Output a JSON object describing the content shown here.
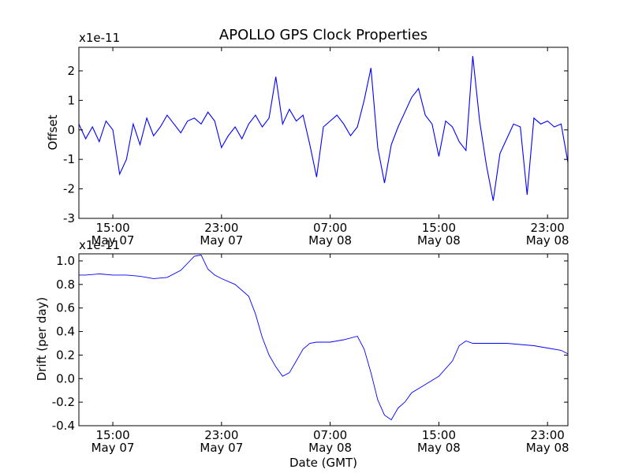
{
  "chart_data": [
    {
      "type": "line",
      "title": "APOLLO GPS Clock Properties",
      "xlabel": "",
      "ylabel": "Offset",
      "scale_label": "x1e-11",
      "ylim": [
        -3,
        2.8
      ],
      "yticks": [
        -3,
        -2,
        -1,
        0,
        1,
        2
      ],
      "ytick_labels": [
        "-3",
        "-2",
        "-1",
        "0",
        "1",
        "2"
      ],
      "xlim_hours": [
        12.5,
        48.5
      ],
      "xtick_hours": [
        15,
        23,
        31,
        39,
        47
      ],
      "xticks": [
        {
          "time": "15:00",
          "date": "May 07"
        },
        {
          "time": "23:00",
          "date": "May 07"
        },
        {
          "time": "07:00",
          "date": "May 08"
        },
        {
          "time": "15:00",
          "date": "May 08"
        },
        {
          "time": "23:00",
          "date": "May 08"
        }
      ],
      "series": [
        {
          "color": "#0000ff",
          "x_hours": [
            12.5,
            13.0,
            13.5,
            14.0,
            14.5,
            15.0,
            15.5,
            16.0,
            16.5,
            17.0,
            17.5,
            18.0,
            18.5,
            19.0,
            19.5,
            20.0,
            20.5,
            21.0,
            21.5,
            22.0,
            22.5,
            23.0,
            23.5,
            24.0,
            24.5,
            25.0,
            25.5,
            26.0,
            26.5,
            27.0,
            27.5,
            28.0,
            28.5,
            29.0,
            29.5,
            30.0,
            30.5,
            31.0,
            31.5,
            32.0,
            32.5,
            33.0,
            33.5,
            34.0,
            34.5,
            35.0,
            35.5,
            36.0,
            36.5,
            37.0,
            37.5,
            38.0,
            38.5,
            39.0,
            39.5,
            40.0,
            40.5,
            41.0,
            41.5,
            42.0,
            42.5,
            43.0,
            43.5,
            44.0,
            44.5,
            45.0,
            45.5,
            46.0,
            46.5,
            47.0,
            47.5,
            48.0,
            48.5
          ],
          "y": [
            0.2,
            -0.3,
            0.1,
            -0.4,
            0.3,
            0.0,
            -1.5,
            -1.0,
            0.2,
            -0.5,
            0.4,
            -0.2,
            0.1,
            0.5,
            0.2,
            -0.1,
            0.3,
            0.4,
            0.2,
            0.6,
            0.3,
            -0.6,
            -0.2,
            0.1,
            -0.3,
            0.2,
            0.5,
            0.1,
            0.4,
            1.8,
            0.2,
            0.7,
            0.3,
            0.5,
            -0.5,
            -1.6,
            0.1,
            0.3,
            0.5,
            0.2,
            -0.2,
            0.1,
            1.0,
            2.1,
            -0.6,
            -1.8,
            -0.5,
            0.1,
            0.6,
            1.1,
            1.4,
            0.5,
            0.2,
            -0.9,
            0.3,
            0.1,
            -0.4,
            -0.7,
            2.5,
            0.3,
            -1.2,
            -2.4,
            -0.8,
            -0.3,
            0.2,
            0.1,
            -2.2,
            0.4,
            0.2,
            0.3,
            0.1,
            0.2,
            -1.1
          ]
        }
      ]
    },
    {
      "type": "line",
      "title": "",
      "xlabel": "Date (GMT)",
      "ylabel": "Drift (per day)",
      "scale_label": "x1e-11",
      "ylim": [
        -0.4,
        1.06
      ],
      "yticks": [
        -0.4,
        -0.2,
        0.0,
        0.2,
        0.4,
        0.6,
        0.8,
        1.0
      ],
      "ytick_labels": [
        "-0.4",
        "-0.2",
        "0.0",
        "0.2",
        "0.4",
        "0.6",
        "0.8",
        "1.0"
      ],
      "xlim_hours": [
        12.5,
        48.5
      ],
      "xtick_hours": [
        15,
        23,
        31,
        39,
        47
      ],
      "xticks": [
        {
          "time": "15:00",
          "date": "May 07"
        },
        {
          "time": "23:00",
          "date": "May 07"
        },
        {
          "time": "07:00",
          "date": "May 08"
        },
        {
          "time": "15:00",
          "date": "May 08"
        },
        {
          "time": "23:00",
          "date": "May 08"
        }
      ],
      "series": [
        {
          "color": "#0000ff",
          "x_hours": [
            12.5,
            13.0,
            14.0,
            15.0,
            16.0,
            17.0,
            18.0,
            19.0,
            20.0,
            21.0,
            21.5,
            22.0,
            22.5,
            23.0,
            24.0,
            25.0,
            25.5,
            26.0,
            26.5,
            27.0,
            27.5,
            28.0,
            28.5,
            29.0,
            29.5,
            30.0,
            31.0,
            32.0,
            33.0,
            33.5,
            34.0,
            34.5,
            35.0,
            35.5,
            36.0,
            36.5,
            37.0,
            38.0,
            39.0,
            40.0,
            40.5,
            41.0,
            41.5,
            42.0,
            43.0,
            44.0,
            45.0,
            46.0,
            47.0,
            48.0,
            48.5
          ],
          "y": [
            0.88,
            0.88,
            0.89,
            0.88,
            0.88,
            0.87,
            0.85,
            0.86,
            0.92,
            1.04,
            1.05,
            0.93,
            0.88,
            0.85,
            0.8,
            0.7,
            0.55,
            0.35,
            0.2,
            0.1,
            0.02,
            0.05,
            0.15,
            0.25,
            0.3,
            0.31,
            0.31,
            0.33,
            0.36,
            0.25,
            0.05,
            -0.18,
            -0.31,
            -0.35,
            -0.25,
            -0.2,
            -0.12,
            -0.05,
            0.02,
            0.15,
            0.28,
            0.32,
            0.3,
            0.3,
            0.3,
            0.3,
            0.29,
            0.28,
            0.26,
            0.24,
            0.21
          ]
        }
      ]
    }
  ]
}
